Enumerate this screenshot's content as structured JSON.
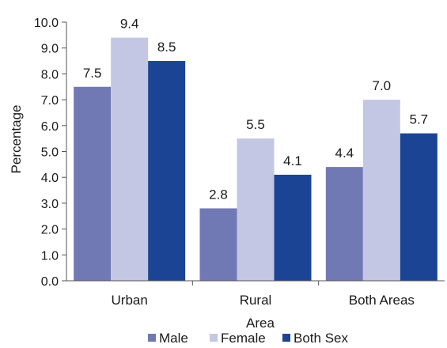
{
  "chart_data": {
    "type": "bar",
    "categories": [
      "Urban",
      "Rural",
      "Both Areas"
    ],
    "series": [
      {
        "name": "Male",
        "values": [
          7.5,
          2.8,
          4.4
        ],
        "color": "#7179b4"
      },
      {
        "name": "Female",
        "values": [
          9.4,
          5.5,
          7.0
        ],
        "color": "#c4c7e3"
      },
      {
        "name": "Both Sex",
        "values": [
          8.5,
          4.1,
          5.7
        ],
        "color": "#1b4594"
      }
    ],
    "xlabel": "Area",
    "ylabel": "Percentage",
    "ylim": [
      0,
      10
    ],
    "yticks": [
      "0.0",
      "1.0",
      "2.0",
      "3.0",
      "4.0",
      "5.0",
      "6.0",
      "7.0",
      "8.0",
      "9.0",
      "10.0"
    ],
    "grid": false,
    "legend": "bottom"
  }
}
